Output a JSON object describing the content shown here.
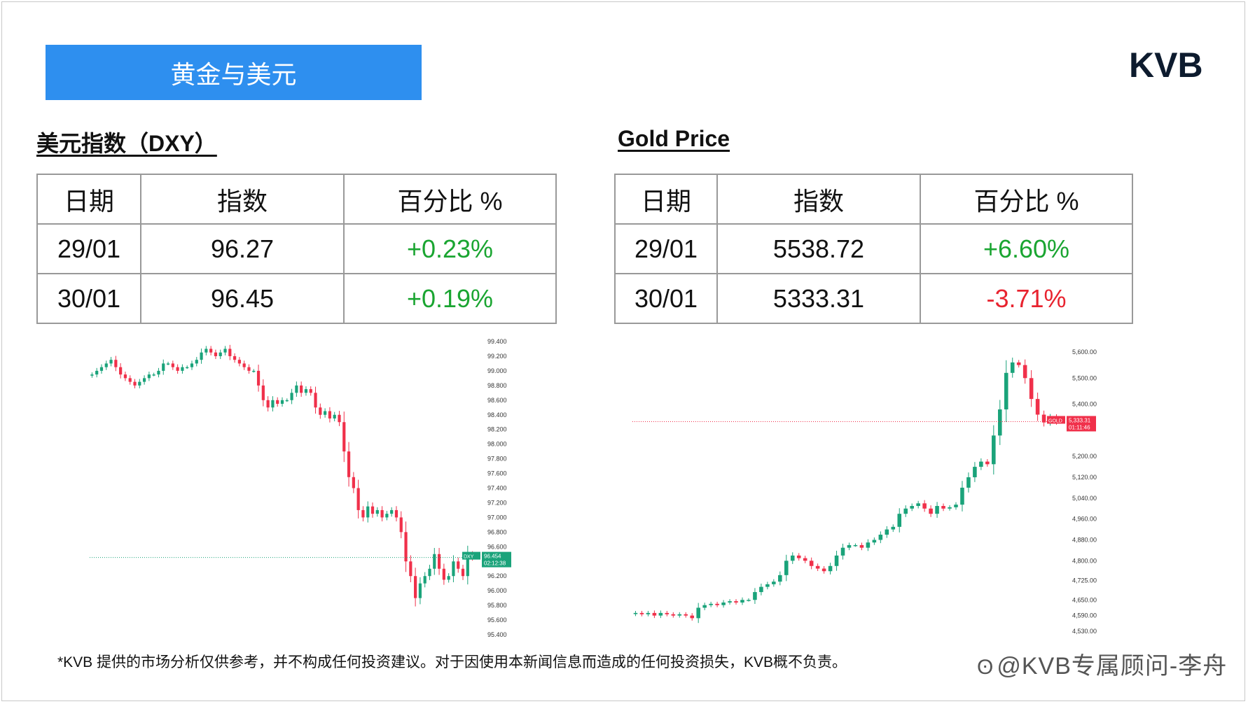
{
  "banner": {
    "title": "黄金与美元"
  },
  "logo": {
    "text": "KVB"
  },
  "dxy": {
    "title": "美元指数（DXY）",
    "headers": [
      "日期",
      "指数",
      "百分比 %"
    ],
    "rows": [
      {
        "date": "29/01",
        "value": "96.27",
        "pct": "+0.23%"
      },
      {
        "date": "30/01",
        "value": "96.45",
        "pct": "+0.19%"
      }
    ]
  },
  "gold": {
    "title": "Gold Price",
    "headers": [
      "日期",
      "指数",
      "百分比 %"
    ],
    "rows": [
      {
        "date": "29/01",
        "value": "5538.72",
        "pct": "+6.60%"
      },
      {
        "date": "30/01",
        "value": "5333.31",
        "pct": "-3.71%"
      }
    ]
  },
  "colors": {
    "up": "#1aa531",
    "down": "#e8232f",
    "banner": "#2e8fef",
    "candle_up": "#1aa37a",
    "candle_down": "#f0304a"
  },
  "chart_data": [
    {
      "type": "candlestick",
      "symbol": "DXY",
      "ylim": [
        95.4,
        99.4
      ],
      "yticks": [
        "99.400",
        "99.200",
        "99.000",
        "98.800",
        "98.600",
        "98.400",
        "98.200",
        "98.000",
        "97.800",
        "97.600",
        "97.400",
        "97.200",
        "97.000",
        "96.800",
        "96.600",
        "96.400",
        "96.200",
        "96.000",
        "95.800",
        "95.600",
        "95.400"
      ],
      "last_price": "96.454",
      "countdown": "02:12:38",
      "closes": [
        98.95,
        99.0,
        99.05,
        99.1,
        99.15,
        99.05,
        98.95,
        98.9,
        98.85,
        98.8,
        98.85,
        98.9,
        98.95,
        98.95,
        99.0,
        99.1,
        99.1,
        99.05,
        99.0,
        99.05,
        99.05,
        99.1,
        99.15,
        99.25,
        99.3,
        99.25,
        99.2,
        99.25,
        99.3,
        99.2,
        99.15,
        99.1,
        99.05,
        99.0,
        99.0,
        98.8,
        98.6,
        98.5,
        98.6,
        98.55,
        98.6,
        98.6,
        98.7,
        98.8,
        98.7,
        98.75,
        98.7,
        98.5,
        98.4,
        98.45,
        98.35,
        98.4,
        98.3,
        97.9,
        97.55,
        97.4,
        97.1,
        97.0,
        97.15,
        97.05,
        97.1,
        97.0,
        97.05,
        97.1,
        97.0,
        96.8,
        96.4,
        96.2,
        95.9,
        96.1,
        96.2,
        96.3,
        96.5,
        96.3,
        96.15,
        96.2,
        96.4,
        96.3,
        96.2,
        96.5,
        96.45
      ]
    },
    {
      "type": "candlestick",
      "symbol": "GOLD",
      "ylim": [
        4530,
        5600
      ],
      "yticks": [
        "5,600.00",
        "5,500.00",
        "5,400.00",
        "5,200.00",
        "5,120.00",
        "5,040.00",
        "4,960.00",
        "4,880.00",
        "4,800.00",
        "4,725.00",
        "4,650.00",
        "4,590.00",
        "4,530.00"
      ],
      "last_price": "5,333.31",
      "countdown": "01:11:46",
      "closes": [
        4600,
        4595,
        4600,
        4590,
        4600,
        4595,
        4590,
        4595,
        4590,
        4580,
        4620,
        4630,
        4635,
        4630,
        4640,
        4645,
        4640,
        4650,
        4650,
        4680,
        4700,
        4710,
        4720,
        4745,
        4800,
        4820,
        4810,
        4800,
        4780,
        4770,
        4760,
        4780,
        4820,
        4850,
        4860,
        4860,
        4850,
        4870,
        4880,
        4900,
        4920,
        4930,
        4980,
        5000,
        5010,
        5020,
        5000,
        4980,
        5010,
        5000,
        5005,
        5015,
        5080,
        5120,
        5160,
        5180,
        5170,
        5280,
        5380,
        5520,
        5560,
        5550,
        5500,
        5420,
        5360,
        5330,
        5350,
        5333
      ]
    }
  ],
  "disclaimer": "*KVB 提供的市场分析仅供参考，并不构成任何投资建议。对于因使用本新闻信息而造成的任何投资损失，KVB概不负责。",
  "watermark": "@KVB专属顾问-李舟"
}
